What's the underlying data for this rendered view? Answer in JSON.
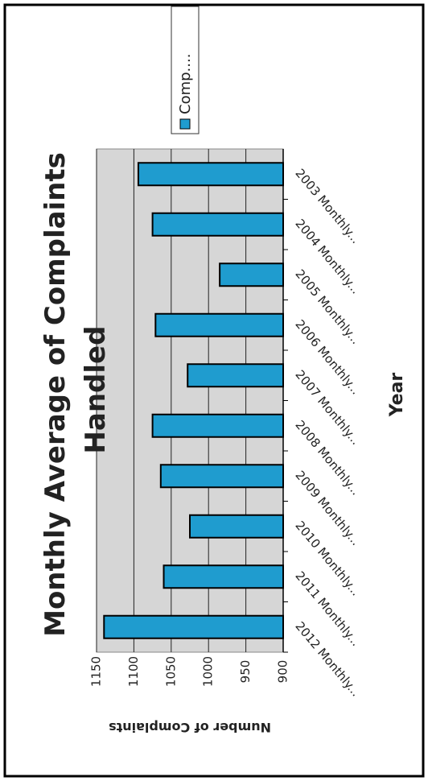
{
  "chart_data": {
    "type": "bar",
    "title": "Monthly Average of Complaints Handled",
    "x_label": "Year",
    "y_label": "Number of Complaints",
    "categories": [
      "2012 Monthly...",
      "2011 Monthly...",
      "2010 Monthly...",
      "2009 Monthly...",
      "2008 Monthly...",
      "2007 Monthly...",
      "2006 Monthly...",
      "2005 Monthly...",
      "2004 Monthly...",
      "2003 Monthly..."
    ],
    "series": [
      {
        "name": "Comp....",
        "color": "#1f9ccf",
        "values": [
          1140,
          1060,
          1025,
          1064,
          1075,
          1028,
          1071,
          985,
          1075,
          1094
        ]
      }
    ],
    "ylim": [
      900,
      1150
    ],
    "yticks": [
      900,
      950,
      1000,
      1050,
      1100,
      1150
    ],
    "grid": true
  }
}
